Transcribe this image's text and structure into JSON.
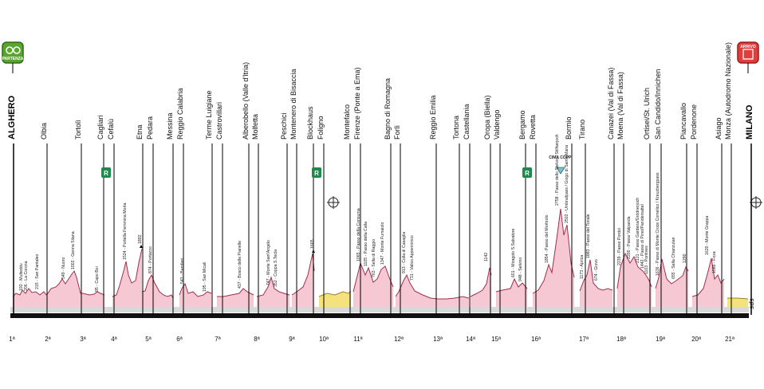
{
  "header": {
    "start_badge": "PARTENZA",
    "finish_badge": "ARRIVO",
    "brand": "sds",
    "cima_coppi": "CIMA COPPI"
  },
  "towns": [
    "ALGHERO",
    "Olbia",
    "Tortolì",
    "Cagliari",
    "Cefalù",
    "Etna",
    "Pedara",
    "Messina",
    "Reggio Calabria",
    "Terme Luigiane",
    "Castrovillari",
    "Alberobello (Valle d'Itria)",
    "Molfetta",
    "Peschici",
    "Montenero di Bisaccia",
    "Blockhaus",
    "Foligno",
    "Montefalco",
    "Firenze (Ponte a Ema)",
    "Bagno di Romagna",
    "Forlì",
    "Reggio Emilia",
    "Tortona",
    "Castellania",
    "Oropa (Biella)",
    "Valdengo",
    "Bergamo",
    "Rovetta",
    "Bormio",
    "Tirano",
    "Canazei (Val di Fassa)",
    "Moena (Val di Fassa)",
    "Ortisei/St. Ulrich",
    "San Candido/Innichen",
    "Piancavallo",
    "Pordenone",
    "Asiago",
    "Monza (Autodromo Nazionale)",
    "MILANO"
  ],
  "rest_days": [
    "R",
    "R",
    "R"
  ],
  "climbs": [
    "192 - Multeddu",
    "206 - La Corona",
    "215 - San Pantaleo",
    "549 - Nuoro",
    "1002 - Genna Silana",
    "95 - Capo Boi",
    "1524 - Portella Femmina Morta",
    "1892",
    "874 - Portazzo",
    "543 - Bamfieri",
    "195 - San Micali",
    "437 - Bosco delle Pianelle",
    "747 - Monte Sant'Angelo",
    "352 - Coppa S.Tecla",
    "1665",
    "1065 - Passo della Consuma",
    "1105 - Passo della Calla",
    "763 - Sella di Raggio",
    "1347 - Monte Fumaiolo",
    "913 - Colla di Casaglia",
    "731 - Valico Appenninico",
    "1142",
    "601 - Miragolo S.Salvatore",
    "948 - Selvino",
    "1854 - Passo del Mortirolo",
    "2758 - Passo dello Stelvio / Stilfserjoch",
    "2502 - Umbrailpass / Giogo di Santa Maria",
    "1173 - Aprica",
    "1883 - Passo del Tonale",
    "674 - Giovo",
    "2239 - Passo Pordoi",
    "2200 - Passo Valparola",
    "2121 - Passo Gardena/Grödnerjoch",
    "1442 - Passo di Pinei/Panidersattel",
    "1103 - Pontives",
    "1636 - Passo di Monte Croce Comelico / Kreuzbergpass",
    "655 - Sella Chianzutan",
    "1290",
    "1620 - Monte Grappa",
    "1086 - Foza"
  ],
  "stages": [
    "1ª",
    "2ª",
    "3ª",
    "4ª",
    "5ª",
    "6ª",
    "7ª",
    "8ª",
    "9ª",
    "10ª",
    "11ª",
    "12ª",
    "13ª",
    "14ª",
    "15ª",
    "16ª",
    "17ª",
    "18ª",
    "19ª",
    "20ª",
    "21ª"
  ]
}
